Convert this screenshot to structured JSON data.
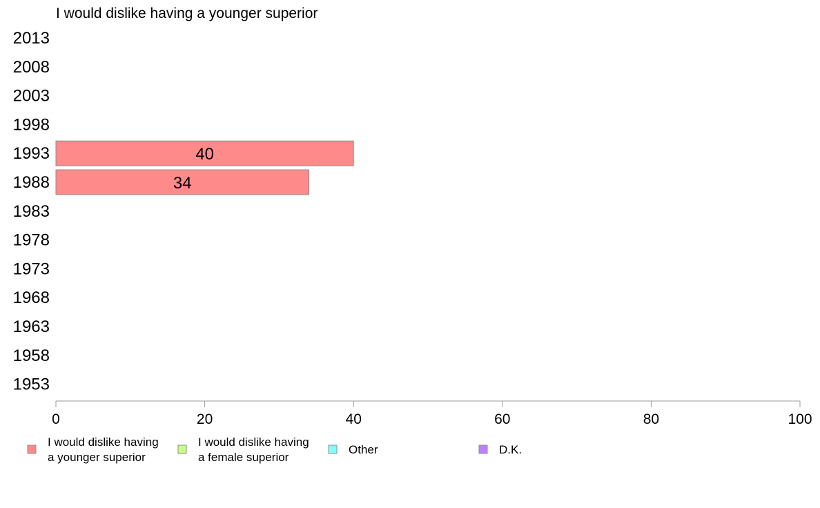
{
  "chart_data": {
    "type": "bar",
    "orientation": "horizontal",
    "title": "I would dislike having a younger superior",
    "categories": [
      "2013",
      "2008",
      "2003",
      "1998",
      "1993",
      "1988",
      "1983",
      "1978",
      "1973",
      "1968",
      "1963",
      "1958",
      "1953"
    ],
    "series": [
      {
        "name": "I would dislike having a younger superior",
        "color": "#ff8a8a",
        "values": [
          null,
          null,
          null,
          null,
          40,
          34,
          null,
          null,
          null,
          null,
          null,
          null,
          null
        ]
      },
      {
        "name": "I would dislike having a female superior",
        "color": "#c6ff80",
        "values": [
          null,
          null,
          null,
          null,
          null,
          null,
          null,
          null,
          null,
          null,
          null,
          null,
          null
        ]
      },
      {
        "name": "Other",
        "color": "#80ffff",
        "values": [
          null,
          null,
          null,
          null,
          null,
          null,
          null,
          null,
          null,
          null,
          null,
          null,
          null
        ]
      },
      {
        "name": "D.K.",
        "color": "#bb80ff",
        "values": [
          null,
          null,
          null,
          null,
          null,
          null,
          null,
          null,
          null,
          null,
          null,
          null,
          null
        ]
      }
    ],
    "data_labels": [
      "",
      "",
      "",
      "",
      "40",
      "34",
      "",
      "",
      "",
      "",
      "",
      "",
      ""
    ],
    "xlim": [
      0,
      100
    ],
    "xticks": [
      "0",
      "20",
      "40",
      "60",
      "80",
      "100"
    ],
    "legend": {
      "placement": "bottom",
      "items": [
        {
          "lines": [
            "I would dislike having",
            "a younger superior"
          ],
          "color": "#ff8a8a"
        },
        {
          "lines": [
            "I would dislike having",
            "a female superior"
          ],
          "color": "#c6ff80"
        },
        {
          "lines": [
            "Other"
          ],
          "color": "#80ffff"
        },
        {
          "lines": [
            "D.K."
          ],
          "color": "#bb80ff"
        }
      ]
    },
    "grid": false
  }
}
